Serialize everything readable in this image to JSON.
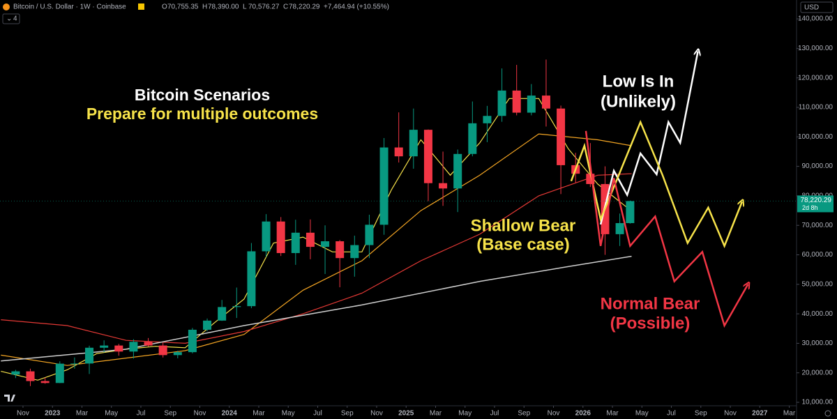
{
  "header": {
    "symbol": "Bitcoin / U.S. Dollar · 1W · Coinbase",
    "ohlc": [
      {
        "label": "O",
        "value": "70,755.35"
      },
      {
        "label": "H",
        "value": "78,390.00"
      },
      {
        "label": "L",
        "value": "70,576.27"
      },
      {
        "label": "C",
        "value": "78,220.29"
      }
    ],
    "change": "+7,464.94 (+10.55%)",
    "indicators": "4",
    "currency": "USD"
  },
  "chart_data": {
    "type": "candlestick",
    "xlim": [
      -1.56,
      52.4
    ],
    "ylim": [
      9300,
      146400
    ],
    "xticks": [
      {
        "value": 0,
        "label": "Nov"
      },
      {
        "value": 2,
        "label": "2023"
      },
      {
        "value": 4,
        "label": "Mar"
      },
      {
        "value": 6,
        "label": "May"
      },
      {
        "value": 8,
        "label": "Jul"
      },
      {
        "value": 10,
        "label": "Sep"
      },
      {
        "value": 12,
        "label": "Nov"
      },
      {
        "value": 14,
        "label": "2024"
      },
      {
        "value": 16,
        "label": "Mar"
      },
      {
        "value": 18,
        "label": "May"
      },
      {
        "value": 20,
        "label": "Jul"
      },
      {
        "value": 22,
        "label": "Sep"
      },
      {
        "value": 24,
        "label": "Nov"
      },
      {
        "value": 26,
        "label": "2025"
      },
      {
        "value": 28,
        "label": "Mar"
      },
      {
        "value": 30,
        "label": "May"
      },
      {
        "value": 32,
        "label": "Jul"
      },
      {
        "value": 34,
        "label": "Sep"
      },
      {
        "value": 36,
        "label": "Nov"
      },
      {
        "value": 38,
        "label": "2026"
      },
      {
        "value": 40,
        "label": "Mar"
      },
      {
        "value": 42,
        "label": "May"
      },
      {
        "value": 44,
        "label": "Jul"
      },
      {
        "value": 46,
        "label": "Sep"
      },
      {
        "value": 48,
        "label": "Nov"
      },
      {
        "value": 50,
        "label": "2027"
      },
      {
        "value": 52,
        "label": "Mar"
      }
    ],
    "yticks": [
      {
        "value": 10000,
        "label": "10,000.00"
      },
      {
        "value": 20000,
        "label": "20,000.00"
      },
      {
        "value": 30000,
        "label": "30,000.00"
      },
      {
        "value": 40000,
        "label": "40,000.00"
      },
      {
        "value": 50000,
        "label": "50,000.00"
      },
      {
        "value": 60000,
        "label": "60,000.00"
      },
      {
        "value": 70000,
        "label": "70,000.00"
      },
      {
        "value": 80000,
        "label": "80,000.00"
      },
      {
        "value": 90000,
        "label": "90,000.00"
      },
      {
        "value": 100000,
        "label": "100,000.00"
      },
      {
        "value": 110000,
        "label": "110,000.00"
      },
      {
        "value": 120000,
        "label": "120,000.00"
      },
      {
        "value": 130000,
        "label": "130,000.00"
      },
      {
        "value": 140000,
        "label": "140,000.00"
      }
    ],
    "candles": {
      "up_color": "#089981",
      "down_color": "#f23645",
      "x": [
        -0.5,
        0.5,
        1.5,
        2.5,
        3.5,
        4.5,
        5.5,
        6.5,
        7.5,
        8.5,
        9.5,
        10.5,
        11.5,
        12.5,
        13.5,
        14.5,
        15.5,
        16.5,
        17.5,
        18.5,
        19.5,
        20.5,
        21.5,
        22.5,
        23.5,
        24.5,
        25.5,
        26.5,
        27.5,
        28.5,
        29.5,
        30.5,
        31.5,
        32.5,
        33.5,
        34.5,
        35.5,
        36.5,
        37.5,
        38.5,
        39.5,
        40.5,
        41.2
      ],
      "open": [
        19400,
        20500,
        17200,
        16550,
        23100,
        23150,
        28500,
        29250,
        27200,
        30500,
        29250,
        26000,
        27000,
        34600,
        37700,
        42300,
        42600,
        61200,
        71300,
        60600,
        67500,
        62700,
        64600,
        58900,
        63300,
        70200,
        96400,
        93400,
        102400,
        84300,
        82500,
        94200,
        104600,
        107100,
        115700,
        108200,
        114000,
        109600,
        90400,
        87500,
        84000,
        67000,
        70755.35
      ],
      "high": [
        21000,
        21400,
        18400,
        23900,
        25200,
        29200,
        31000,
        29800,
        31400,
        31800,
        30200,
        27500,
        35200,
        38400,
        44700,
        48900,
        64000,
        73800,
        72800,
        71900,
        72000,
        70000,
        65000,
        66500,
        73600,
        99600,
        108300,
        109600,
        102500,
        95000,
        95700,
        112000,
        110500,
        123200,
        124400,
        117900,
        126200,
        110600,
        94600,
        97900,
        90000,
        74000,
        78390
      ],
      "low": [
        18200,
        15500,
        16300,
        16500,
        21400,
        19600,
        26900,
        25800,
        24800,
        28900,
        25200,
        24900,
        26600,
        34100,
        37600,
        38600,
        41900,
        59300,
        59600,
        56600,
        58500,
        53500,
        49000,
        52600,
        58900,
        66800,
        91300,
        89200,
        78200,
        76600,
        74500,
        93400,
        98200,
        105100,
        107300,
        107300,
        103500,
        80600,
        84400,
        83000,
        60000,
        63000,
        70576.27
      ],
      "close": [
        20500,
        17200,
        16550,
        23100,
        23150,
        28500,
        29250,
        27200,
        30500,
        29250,
        26000,
        27000,
        34600,
        37700,
        42300,
        42600,
        61200,
        71300,
        60600,
        67500,
        62700,
        64600,
        58900,
        63300,
        70200,
        96400,
        93400,
        102400,
        84300,
        82500,
        94200,
        104600,
        107100,
        115700,
        108200,
        114000,
        109600,
        90400,
        87500,
        84000,
        67000,
        70755.35,
        78220.29
      ]
    },
    "series": [
      {
        "color": "#f7e34a",
        "width": 1.2,
        "x": [
          -1.5,
          1,
          3,
          5,
          7,
          9,
          11,
          13,
          15,
          17,
          19,
          21,
          23,
          25,
          27,
          29,
          31,
          33,
          35,
          37,
          39,
          41
        ],
        "values": [
          20500,
          17500,
          21000,
          26500,
          28000,
          29000,
          28500,
          37000,
          45000,
          64000,
          66000,
          61000,
          61000,
          82000,
          99000,
          87000,
          98000,
          113000,
          113000,
          96000,
          84000,
          76000
        ]
      },
      {
        "color": "#f5a623",
        "width": 1.2,
        "x": [
          -1.5,
          3,
          7,
          11,
          15,
          19,
          23,
          27,
          31,
          35,
          39,
          41.3
        ],
        "values": [
          26000,
          22500,
          25000,
          27500,
          33000,
          48000,
          58000,
          75000,
          87000,
          101000,
          99000,
          97000
        ]
      },
      {
        "color": "#e53935",
        "width": 1.2,
        "x": [
          -1.5,
          3,
          7,
          11,
          15,
          19,
          23,
          27,
          31,
          35,
          39,
          41.3
        ],
        "values": [
          38000,
          36000,
          31000,
          30000,
          34000,
          40000,
          47000,
          58000,
          67000,
          80000,
          87000,
          87500
        ]
      },
      {
        "color": "#cfcfcf",
        "width": 1.5,
        "x": [
          -1.5,
          7,
          15,
          23,
          31,
          37,
          41.3
        ],
        "values": [
          24000,
          28000,
          36000,
          43000,
          51000,
          56000,
          59500
        ]
      },
      {
        "color": "#ffffff",
        "width": 2.5,
        "arrow": true,
        "x": [
          39.2,
          40.1,
          41.0,
          41.9,
          43.0,
          43.8,
          44.6,
          45.8
        ],
        "values": [
          70300,
          88500,
          80300,
          94400,
          87300,
          105000,
          98000,
          129000
        ]
      },
      {
        "color": "#f7e34a",
        "width": 2.5,
        "arrow": true,
        "x": [
          37.2,
          38.1,
          39.2,
          41.9,
          43.4,
          45.1,
          46.5,
          47.6,
          48.8
        ],
        "values": [
          85000,
          97000,
          72000,
          105000,
          87000,
          64000,
          76000,
          63000,
          78000
        ]
      },
      {
        "color": "#f23645",
        "width": 2.5,
        "arrow": true,
        "x": [
          38.2,
          39.2,
          40.1,
          41.2,
          42.9,
          44.2,
          46.1,
          47.6,
          49.2
        ],
        "values": [
          102000,
          63000,
          86000,
          63000,
          73000,
          51000,
          61000,
          36000,
          50000
        ]
      }
    ],
    "last_price": {
      "value": 78220.29,
      "label": "78,220.29",
      "countdown": "2d 8h",
      "color": "#089981"
    },
    "annotations": [
      {
        "text": "Bitcoin Scenarios",
        "color": "#ffffff"
      },
      {
        "text": "Prepare for multiple outcomes",
        "color": "#f7e34a"
      },
      {
        "text": "Low Is In",
        "color": "#ffffff"
      },
      {
        "text": "(Unlikely)",
        "color": "#ffffff"
      },
      {
        "text": "Shallow Bear",
        "color": "#f7e34a"
      },
      {
        "text": "(Base case)",
        "color": "#f7e34a"
      },
      {
        "text": "Normal Bear",
        "color": "#f23645"
      },
      {
        "text": "(Possible)",
        "color": "#f23645"
      }
    ]
  }
}
